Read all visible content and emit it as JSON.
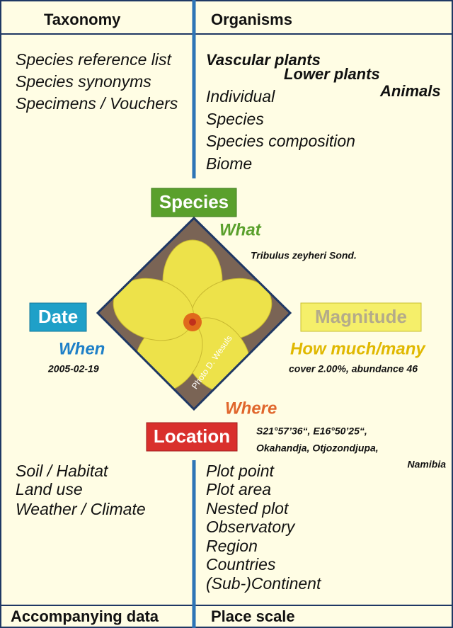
{
  "header": {
    "left": "Taxonomy",
    "right": "Organisms"
  },
  "taxonomy": [
    "Species reference list",
    "Species synonyms",
    "Specimens / Vouchers"
  ],
  "organisms": {
    "groups": [
      "Vascular plants",
      "Lower plants",
      "Animals"
    ],
    "levels": [
      "Individual",
      "Species",
      "Species composition",
      "Biome"
    ]
  },
  "center": {
    "species": {
      "label": "Species",
      "question": "What",
      "value": "Tribulus zeyheri Sond."
    },
    "date": {
      "label": "Date",
      "question": "When",
      "value": "2005-02-19"
    },
    "magnitude": {
      "label": "Magnitude",
      "question": "How much/many",
      "value": "cover 2.00%, abundance 46"
    },
    "location": {
      "label": "Location",
      "question": "Where",
      "value_lines": [
        "S21°57’36“, E16°50’25“,",
        "Okahandja, Otjozondjupa,",
        "Namibia"
      ]
    },
    "photo_credit": "Photo D. Wesuls"
  },
  "accompanying": [
    "Soil / Habitat",
    "Land use",
    "Weather / Climate"
  ],
  "place": [
    "Plot point",
    "Plot area",
    "Nested plot",
    "Observatory",
    "Region",
    "Countries",
    "(Sub-)Continent"
  ],
  "footer": {
    "left": "Accompanying data",
    "right": "Place scale"
  }
}
